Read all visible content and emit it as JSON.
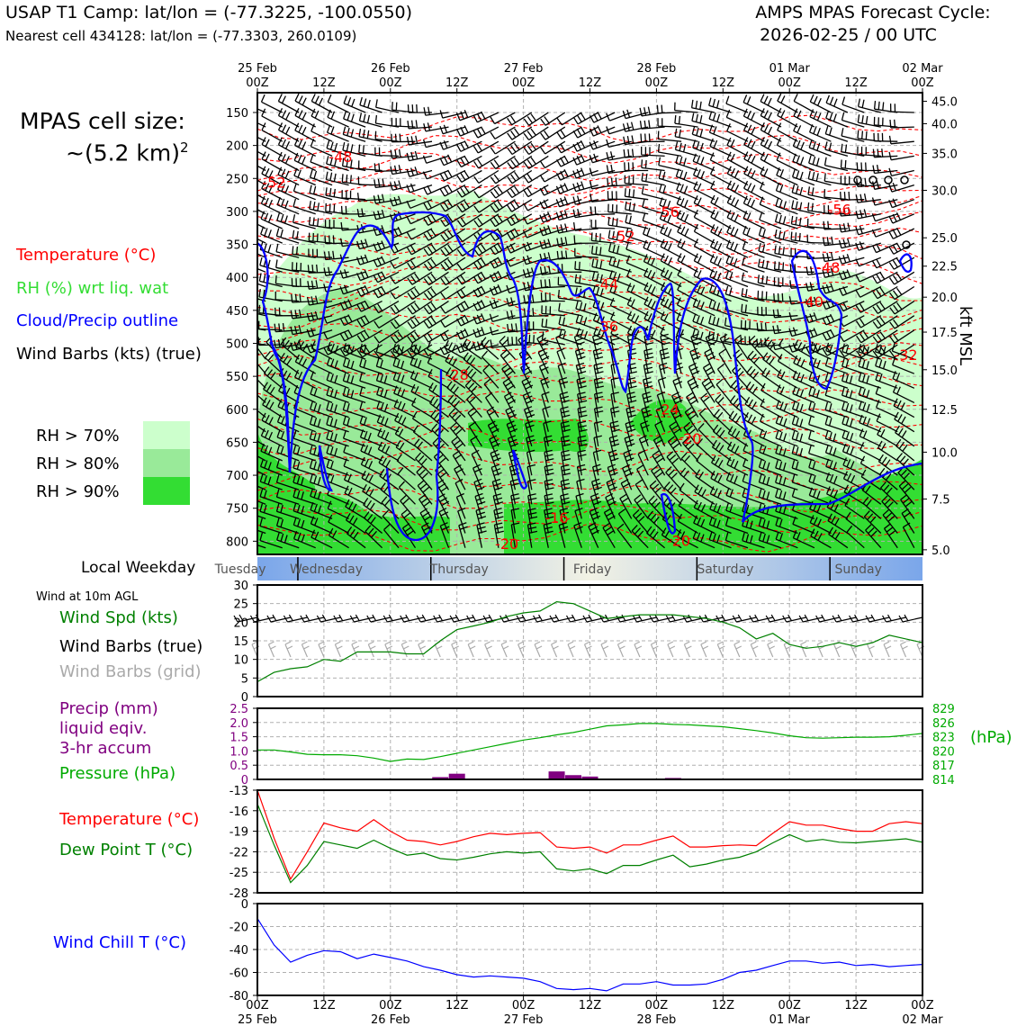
{
  "header": {
    "title_left": "USAP T1 Camp: lat/lon = (-77.3225, -100.0550)",
    "subtitle_left": "Nearest cell 434128: lat/lon = (-77.3303, 260.0109)",
    "title_right_1": "AMPS MPAS Forecast Cycle:",
    "title_right_2": "2026-02-25 / 00 UTC"
  },
  "legend": {
    "cell_size_1": "MPAS cell size:",
    "cell_size_2": "~(5.2 km)",
    "cell_size_sup": "2",
    "temperature": "Temperature (°C)",
    "rh": "RH (%) wrt liq. wat",
    "cloud": "Cloud/Precip outline",
    "wind": "Wind Barbs (kts) (true)",
    "rh70": "RH > 70%",
    "rh80": "RH > 80%",
    "rh90": "RH > 90%",
    "weekday_label": "Local Weekday",
    "wind10m": "Wind at 10m AGL",
    "wind_spd": "Wind Spd (kts)",
    "wind_barbs_true": "Wind Barbs (true)",
    "wind_barbs_grid": "Wind Barbs (grid)",
    "precip_1": "Precip (mm)",
    "precip_2": "liquid eqiv.",
    "precip_3": "3-hr accum",
    "pressure": "Pressure (hPa)",
    "hpa_unit": "(hPa)",
    "temp2": "Temperature (°C)",
    "dewpoint": "Dew Point T (°C)",
    "windchill": "Wind Chill T (°C)",
    "kft": "kft MSL"
  },
  "colors": {
    "rh70": "#ccffcc",
    "rh80": "#99ea99",
    "rh90": "#33dd33",
    "temp": "#ff0000",
    "cloud": "#0000ff",
    "dew": "#008000",
    "precip": "#800080",
    "pressure": "#00aa00"
  },
  "chart_data": [
    {
      "type": "time-height",
      "title": "Time-height cross section",
      "x_top_labels": [
        {
          "h": 0,
          "l1": "25 Feb",
          "l2": "00Z"
        },
        {
          "h": 12,
          "l1": "",
          "l2": "12Z"
        },
        {
          "h": 24,
          "l1": "26 Feb",
          "l2": "00Z"
        },
        {
          "h": 36,
          "l1": "",
          "l2": "12Z"
        },
        {
          "h": 48,
          "l1": "27 Feb",
          "l2": "00Z"
        },
        {
          "h": 60,
          "l1": "",
          "l2": "12Z"
        },
        {
          "h": 72,
          "l1": "28 Feb",
          "l2": "00Z"
        },
        {
          "h": 84,
          "l1": "",
          "l2": "12Z"
        },
        {
          "h": 96,
          "l1": "01 Mar",
          "l2": "00Z"
        },
        {
          "h": 108,
          "l1": "",
          "l2": "12Z"
        },
        {
          "h": 120,
          "l1": "02 Mar",
          "l2": "00Z"
        }
      ],
      "p_ticks": [
        "150",
        "200",
        "250",
        "300",
        "350",
        "400",
        "450",
        "500",
        "550",
        "600",
        "650",
        "700",
        "750",
        "800"
      ],
      "p_values": [
        150,
        200,
        250,
        300,
        350,
        400,
        450,
        500,
        550,
        600,
        650,
        700,
        750,
        800
      ],
      "plim": [
        120,
        820
      ],
      "kft_ticks": [
        {
          "p": 133,
          "label": "45.0"
        },
        {
          "p": 167,
          "label": "40.0"
        },
        {
          "p": 212,
          "label": "35.0"
        },
        {
          "p": 268,
          "label": "30.0"
        },
        {
          "p": 340,
          "label": "25.0"
        },
        {
          "p": 383,
          "label": "22.5"
        },
        {
          "p": 430,
          "label": "20.0"
        },
        {
          "p": 483,
          "label": "17.5"
        },
        {
          "p": 540,
          "label": "15.0"
        },
        {
          "p": 600,
          "label": "12.5"
        },
        {
          "p": 665,
          "label": "10.0"
        },
        {
          "p": 736,
          "label": "7.5"
        },
        {
          "p": 813,
          "label": "5.0"
        }
      ],
      "temp_labels": [
        {
          "h": 15,
          "p": 225,
          "label": "-48"
        },
        {
          "h": 3,
          "p": 264,
          "label": "-52"
        },
        {
          "h": 74,
          "p": 308,
          "label": "-56"
        },
        {
          "h": 105,
          "p": 305,
          "label": "-56"
        },
        {
          "h": 66,
          "p": 345,
          "label": "-52"
        },
        {
          "h": 103,
          "p": 393,
          "label": "-48"
        },
        {
          "h": 63,
          "p": 418,
          "label": "-44"
        },
        {
          "h": 100,
          "p": 445,
          "label": "-40"
        },
        {
          "h": 63,
          "p": 482,
          "label": "-36"
        },
        {
          "h": 117,
          "p": 525,
          "label": "-32"
        },
        {
          "h": 36,
          "p": 555,
          "label": "-28"
        },
        {
          "h": 74,
          "p": 608,
          "label": "-24"
        },
        {
          "h": 78,
          "p": 652,
          "label": "-20"
        },
        {
          "h": 54,
          "p": 772,
          "label": "-16"
        },
        {
          "h": 45,
          "p": 812,
          "label": "-20"
        },
        {
          "h": 76,
          "p": 807,
          "label": "-20"
        }
      ]
    },
    {
      "type": "line",
      "title": "Wind at 10m AGL",
      "ylabel": "Wind Spd (kts)",
      "ylim": [
        0,
        30
      ],
      "yticks": [
        "0",
        "5",
        "10",
        "15",
        "20",
        "25",
        "30"
      ],
      "hours": [
        0,
        3,
        6,
        9,
        12,
        15,
        18,
        21,
        24,
        27,
        30,
        33,
        36,
        39,
        42,
        45,
        48,
        51,
        54,
        57,
        60,
        63,
        66,
        69,
        72,
        75,
        78,
        81,
        84,
        87,
        90,
        93,
        96,
        99,
        102,
        105,
        108,
        111,
        114,
        117,
        120
      ],
      "values": [
        4,
        6.5,
        7.5,
        8,
        10,
        9.5,
        12,
        12,
        12,
        11.5,
        11.5,
        15,
        18,
        19,
        20,
        21.5,
        22.5,
        23,
        25.5,
        25,
        23,
        21,
        21.5,
        22,
        22,
        22,
        21.5,
        21,
        20,
        18.5,
        15.5,
        17,
        14,
        13,
        13.5,
        14.5,
        13.5,
        14.5,
        16.5,
        15.5,
        14.5
      ]
    },
    {
      "type": "bar+line",
      "title": "Precip and Pressure",
      "precip_ylim": [
        0,
        2.5
      ],
      "precip_ticks": [
        "0",
        "0.5",
        "1.0",
        "1.5",
        "2.0",
        "2.5"
      ],
      "precip_bars": [
        {
          "h": 33,
          "v": 0.08
        },
        {
          "h": 36,
          "v": 0.2
        },
        {
          "h": 54,
          "v": 0.28
        },
        {
          "h": 57,
          "v": 0.15
        },
        {
          "h": 60,
          "v": 0.1
        },
        {
          "h": 75,
          "v": 0.05
        }
      ],
      "pressure_ylim": [
        814,
        829
      ],
      "pressure_ticks": [
        "814",
        "817",
        "820",
        "823",
        "826",
        "829"
      ],
      "hours": [
        0,
        3,
        6,
        9,
        12,
        15,
        18,
        21,
        24,
        27,
        30,
        33,
        36,
        39,
        42,
        45,
        48,
        51,
        54,
        57,
        60,
        63,
        66,
        69,
        72,
        75,
        78,
        81,
        84,
        87,
        90,
        93,
        96,
        99,
        102,
        105,
        108,
        111,
        114,
        117,
        120
      ],
      "pressure": [
        820.2,
        820.2,
        819.8,
        819.3,
        819.2,
        819.2,
        819,
        818.5,
        817.8,
        818.3,
        818.2,
        818.8,
        819.5,
        820.2,
        820.9,
        821.6,
        822.3,
        822.8,
        823.4,
        823.9,
        824.6,
        825.3,
        825.5,
        825.8,
        825.8,
        825.6,
        825.5,
        825.3,
        825.1,
        824.7,
        824.3,
        823.8,
        823.2,
        822.8,
        822.7,
        822.8,
        822.9,
        822.9,
        823,
        823.3,
        823.7
      ]
    },
    {
      "type": "line",
      "title": "Temperature and Dew Point",
      "ylim": [
        -28,
        -13
      ],
      "yticks": [
        "-28",
        "-25",
        "-22",
        "-19",
        "-16",
        "-13"
      ],
      "hours": [
        0,
        3,
        6,
        9,
        12,
        15,
        18,
        21,
        24,
        27,
        30,
        33,
        36,
        39,
        42,
        45,
        48,
        51,
        54,
        57,
        60,
        63,
        66,
        69,
        72,
        75,
        78,
        81,
        84,
        87,
        90,
        93,
        96,
        99,
        102,
        105,
        108,
        111,
        114,
        117,
        120
      ],
      "series": [
        {
          "name": "Temperature",
          "values": [
            -13,
            -20,
            -26,
            -22,
            -17.8,
            -18.5,
            -19,
            -17.3,
            -19,
            -20.3,
            -20.5,
            -21,
            -20.5,
            -19.8,
            -19.3,
            -19.5,
            -19.3,
            -19.2,
            -21.3,
            -21.5,
            -21.3,
            -22.2,
            -21,
            -21,
            -20.3,
            -19.7,
            -21.3,
            -21.3,
            -21.1,
            -21,
            -21.1,
            -19.3,
            -17.6,
            -18.1,
            -18.1,
            -18.6,
            -19,
            -19,
            -17.9,
            -17.6,
            -17.9
          ]
        },
        {
          "name": "Dew Point",
          "values": [
            -15,
            -21,
            -26.5,
            -24,
            -20.5,
            -21,
            -21.5,
            -20.3,
            -21.5,
            -22.5,
            -22.2,
            -23,
            -23.2,
            -22.8,
            -22.3,
            -22,
            -22.2,
            -22,
            -24.5,
            -24.8,
            -24.5,
            -25.2,
            -24,
            -24,
            -23.2,
            -22.5,
            -24.2,
            -23.8,
            -23.2,
            -22.8,
            -22,
            -20.7,
            -19.5,
            -20.5,
            -20.2,
            -20.6,
            -20.7,
            -20.5,
            -20.3,
            -20.1,
            -20.6
          ]
        }
      ]
    },
    {
      "type": "line",
      "title": "Wind Chill",
      "ylim": [
        -80,
        0
      ],
      "yticks": [
        "-80",
        "-60",
        "-40",
        "-20",
        "0"
      ],
      "hours": [
        0,
        3,
        6,
        9,
        12,
        15,
        18,
        21,
        24,
        27,
        30,
        33,
        36,
        39,
        42,
        45,
        48,
        51,
        54,
        57,
        60,
        63,
        66,
        69,
        72,
        75,
        78,
        81,
        84,
        87,
        90,
        93,
        96,
        99,
        102,
        105,
        108,
        111,
        114,
        117,
        120
      ],
      "values": [
        -13,
        -36,
        -51,
        -45,
        -41,
        -42,
        -48,
        -44,
        -47,
        -50,
        -55,
        -58,
        -62,
        -64,
        -63,
        -64,
        -65,
        -68,
        -74,
        -75,
        -74,
        -76,
        -70,
        -70,
        -68,
        -71,
        -71,
        -70,
        -66,
        -60,
        -58,
        -54,
        -50,
        -50,
        -52,
        -51,
        -54,
        -53,
        -55,
        -54,
        -53
      ]
    }
  ],
  "weekdays": {
    "labels": [
      {
        "h": -6,
        "label": "Tuesday"
      },
      {
        "h": 9.5,
        "label": "Wednesday"
      },
      {
        "h": 33.5,
        "label": "Thursday"
      },
      {
        "h": 57.5,
        "label": "Friday"
      },
      {
        "h": 81.5,
        "label": "Saturday"
      },
      {
        "h": 105.5,
        "label": "Sunday"
      }
    ]
  },
  "bottom_x_labels": [
    {
      "h": 0,
      "l1": "00Z",
      "l2": "25 Feb"
    },
    {
      "h": 12,
      "l1": "12Z",
      "l2": ""
    },
    {
      "h": 24,
      "l1": "00Z",
      "l2": "26 Feb"
    },
    {
      "h": 36,
      "l1": "12Z",
      "l2": ""
    },
    {
      "h": 48,
      "l1": "00Z",
      "l2": "27 Feb"
    },
    {
      "h": 60,
      "l1": "12Z",
      "l2": ""
    },
    {
      "h": 72,
      "l1": "00Z",
      "l2": "28 Feb"
    },
    {
      "h": 84,
      "l1": "12Z",
      "l2": ""
    },
    {
      "h": 96,
      "l1": "00Z",
      "l2": "01 Mar"
    },
    {
      "h": 108,
      "l1": "12Z",
      "l2": ""
    },
    {
      "h": 120,
      "l1": "00Z",
      "l2": "02 Mar"
    }
  ]
}
